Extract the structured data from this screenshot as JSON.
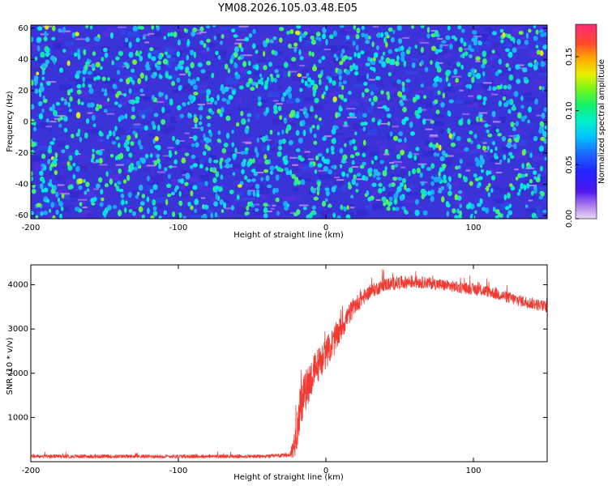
{
  "title": "YM08.2026.105.03.48.E05",
  "colors": {
    "snr_line": "#f03a32",
    "spectro_bg": "#3a33d8"
  },
  "chart_data": [
    {
      "type": "heatmap",
      "name": "spectrogram",
      "title": "YM08.2026.105.03.48.E05",
      "xlabel": "Height of straight line (km)",
      "ylabel": "Frequency (Hz)",
      "xlim": [
        -200,
        150
      ],
      "ylim": [
        -62,
        62
      ],
      "xticks": [
        -200,
        -100,
        0,
        100
      ],
      "xtick_labels": [
        "-200",
        "-100",
        "0",
        "100"
      ],
      "yticks": [
        60,
        40,
        20,
        0,
        -20,
        -40,
        -60
      ],
      "ytick_labels": [
        "60",
        "40",
        "20",
        "0",
        "-20",
        "-40",
        "-60"
      ],
      "colorbar": {
        "label": "Normalized spectral amplitude",
        "range": [
          0.0,
          0.18
        ],
        "ticks": [
          0.0,
          0.05,
          0.1,
          0.15
        ],
        "tick_labels": [
          "0.00",
          "0.05",
          "0.10",
          "0.15"
        ]
      }
    },
    {
      "type": "line",
      "name": "snr",
      "xlabel": "Height of straight line (km)",
      "ylabel": "SNR (10 * v/v)",
      "xlim": [
        -200,
        150
      ],
      "ylim": [
        0,
        4450
      ],
      "xticks": [
        -200,
        -100,
        0,
        100
      ],
      "xtick_labels": [
        "-200",
        "-100",
        "0",
        "100"
      ],
      "yticks": [
        1000,
        2000,
        3000,
        4000
      ],
      "ytick_labels": [
        "1000",
        "2000",
        "3000",
        "4000"
      ],
      "series": [
        {
          "name": "SNR",
          "color": "#f03a32",
          "x": [
            -200,
            -160,
            -120,
            -80,
            -40,
            -25,
            -22,
            -20,
            -18,
            -15,
            -10,
            -5,
            0,
            5,
            10,
            15,
            20,
            30,
            40,
            50,
            60,
            70,
            80,
            90,
            100,
            110,
            120,
            130,
            140,
            150
          ],
          "base": [
            120,
            120,
            120,
            120,
            120,
            150,
            300,
            700,
            1100,
            1500,
            1900,
            2200,
            2450,
            2700,
            3000,
            3300,
            3550,
            3850,
            4000,
            4050,
            4070,
            4040,
            3990,
            3940,
            3900,
            3850,
            3750,
            3650,
            3580,
            3500
          ],
          "noise": [
            80,
            80,
            80,
            80,
            80,
            100,
            500,
            1000,
            1000,
            900,
            900,
            800,
            700,
            700,
            600,
            500,
            400,
            300,
            300,
            300,
            280,
            260,
            260,
            260,
            260,
            260,
            260,
            260,
            260,
            260
          ]
        }
      ]
    }
  ]
}
